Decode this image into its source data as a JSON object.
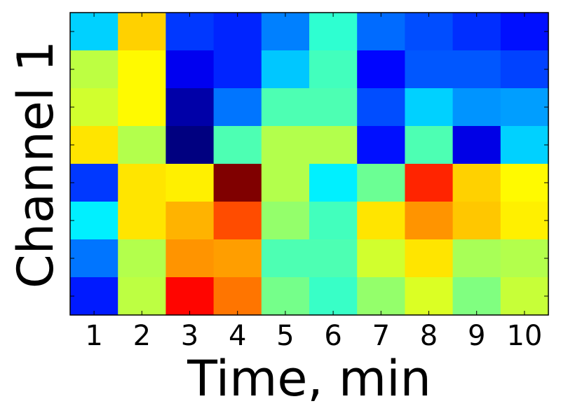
{
  "chart_data": {
    "type": "heatmap",
    "title": "",
    "xlabel": "Time, min",
    "ylabel": "Channel 1",
    "x_categories": [
      "1",
      "2",
      "3",
      "4",
      "5",
      "6",
      "7",
      "8",
      "9",
      "10"
    ],
    "y_tick_labels": [],
    "colormap": "jet",
    "value_range": [
      0,
      1
    ],
    "grid": false,
    "legend": "none",
    "values": [
      [
        0.33,
        0.67,
        0.18,
        0.16,
        0.25,
        0.42,
        0.23,
        0.2,
        0.17,
        0.14
      ],
      [
        0.56,
        0.63,
        0.11,
        0.16,
        0.32,
        0.44,
        0.13,
        0.21,
        0.21,
        0.19
      ],
      [
        0.58,
        0.63,
        0.04,
        0.24,
        0.45,
        0.45,
        0.2,
        0.33,
        0.27,
        0.28
      ],
      [
        0.65,
        0.55,
        0.0,
        0.45,
        0.55,
        0.55,
        0.14,
        0.45,
        0.1,
        0.33
      ],
      [
        0.18,
        0.65,
        0.64,
        1.0,
        0.55,
        0.36,
        0.48,
        0.84,
        0.67,
        0.63
      ],
      [
        0.36,
        0.65,
        0.7,
        0.8,
        0.52,
        0.44,
        0.65,
        0.73,
        0.68,
        0.64
      ],
      [
        0.24,
        0.55,
        0.73,
        0.72,
        0.45,
        0.45,
        0.58,
        0.65,
        0.54,
        0.55
      ],
      [
        0.15,
        0.56,
        0.87,
        0.76,
        0.49,
        0.43,
        0.52,
        0.59,
        0.5,
        0.57
      ]
    ]
  }
}
